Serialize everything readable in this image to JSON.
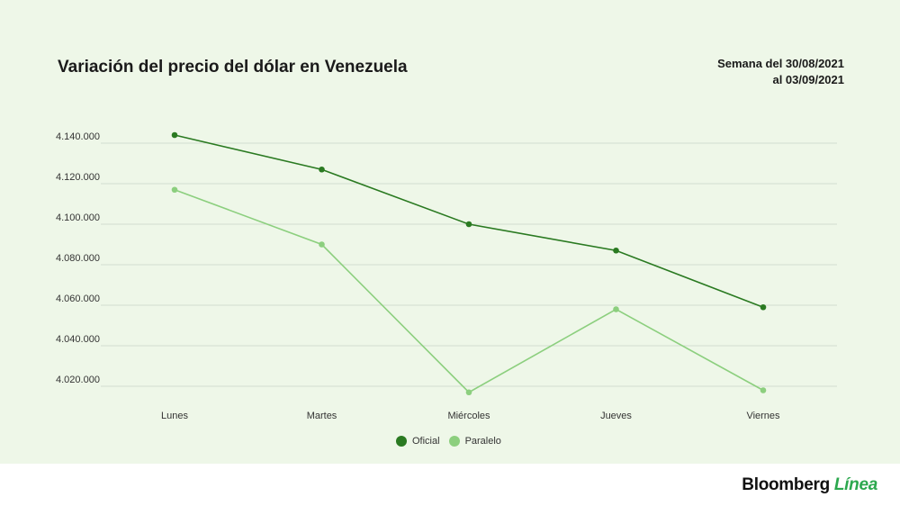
{
  "header": {
    "title": "Variación del precio del dólar en Venezuela",
    "subtitle_line1": "Semana del 30/08/2021",
    "subtitle_line2": "al 03/09/2021"
  },
  "brand": {
    "name": "Bloomberg",
    "suffix": "Línea"
  },
  "colors": {
    "oficial": "#2a7a21",
    "paralelo": "#8ccf7e",
    "grid": "#d3ddd0",
    "background": "#eef7e8"
  },
  "chart_data": {
    "type": "line",
    "categories": [
      "Lunes",
      "Martes",
      "Miércoles",
      "Jueves",
      "Viernes"
    ],
    "series": [
      {
        "name": "Oficial",
        "values": [
          4144000,
          4127000,
          4100000,
          4087000,
          4059000
        ]
      },
      {
        "name": "Paralelo",
        "values": [
          4117000,
          4090000,
          4017000,
          4058000,
          4018000
        ]
      }
    ],
    "y_ticks": [
      4020000,
      4040000,
      4060000,
      4080000,
      4100000,
      4120000,
      4140000
    ],
    "y_tick_labels": [
      "4.020.000",
      "4.040.000",
      "4.060.000",
      "4.080.000",
      "4.100.000",
      "4.120.000",
      "4.140.000"
    ],
    "ylim": [
      4012000,
      4148000
    ],
    "grid": true,
    "legend_position": "bottom"
  }
}
